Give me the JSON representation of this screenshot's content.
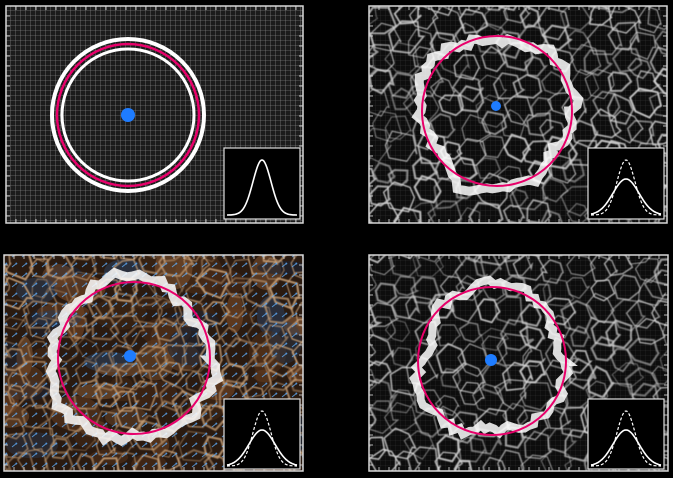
{
  "figure": {
    "background": "#000000",
    "accent_colors": {
      "circle_outline": "#e8006a",
      "ring_white": "#ffffff",
      "center_marker": "#1e7cff",
      "vector_field": "#5fb0ff",
      "background_texture": "#b86a2a"
    },
    "panels": [
      {
        "id": "panel-1",
        "description_name": "reference-grid-panel",
        "state": "undeformed",
        "overlay": "none",
        "inset_curves": 1
      },
      {
        "id": "panel-2",
        "description_name": "deformed-grid-panel",
        "state": "deformed",
        "overlay": "cell-network",
        "inset_curves": 2
      },
      {
        "id": "panel-3",
        "description_name": "flow-field-panel",
        "state": "deformed",
        "overlay": "vector-field",
        "inset_curves": 2
      },
      {
        "id": "panel-4",
        "description_name": "cell-network-panel",
        "state": "deformed",
        "overlay": "cell-network",
        "inset_curves": 2
      }
    ]
  }
}
